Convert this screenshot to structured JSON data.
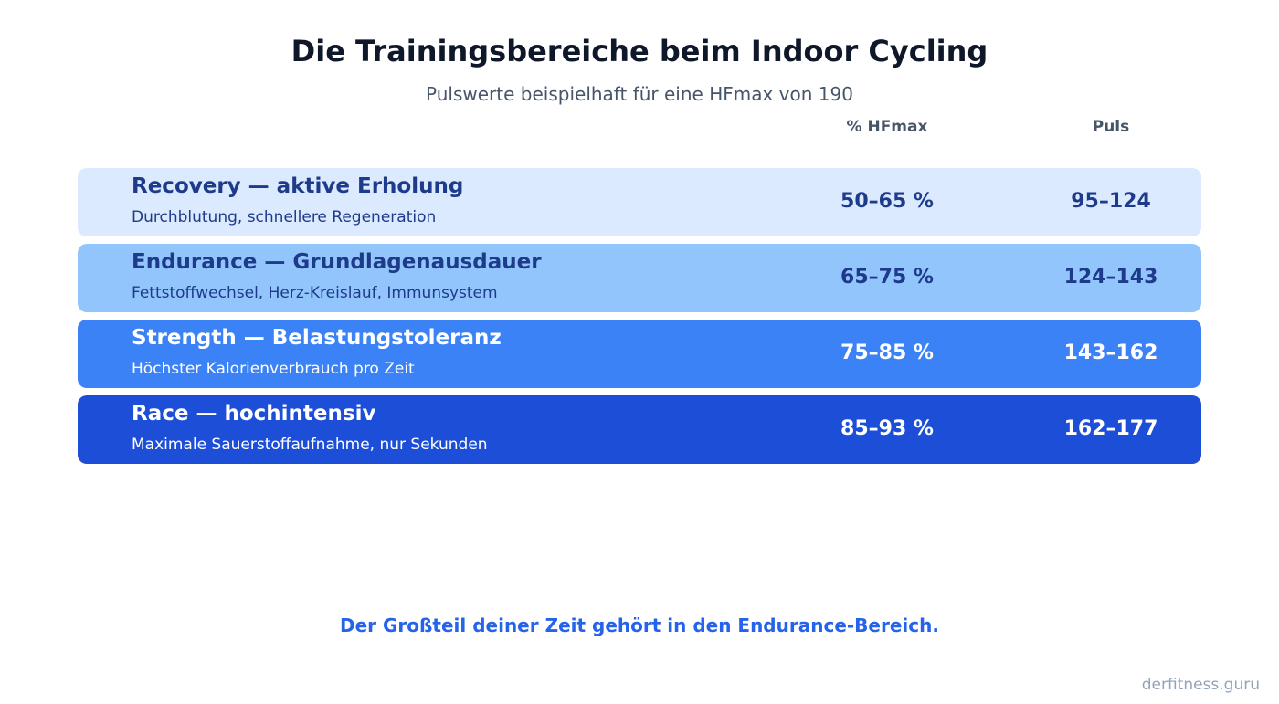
{
  "chart_data": {
    "type": "table",
    "title": "Die Trainingsbereiche beim Indoor Cycling",
    "subtitle": "Pulswerte beispielhaft für eine HFmax von 190",
    "columns": [
      "% HFmax",
      "Puls"
    ],
    "rows": [
      {
        "name": "Recovery — aktive Erholung",
        "description": "Durchblutung, schnellere Regeneration",
        "pct_hfmax": "50–65 %",
        "puls": "95–124",
        "bg_color": "#dbeafe",
        "text_color": "#1e3a8a"
      },
      {
        "name": "Endurance — Grundlagenausdauer",
        "description": "Fettstoffwechsel, Herz-Kreislauf, Immunsystem",
        "pct_hfmax": "65–75 %",
        "puls": "124–143",
        "bg_color": "#93c5fd",
        "text_color": "#1e3a8a"
      },
      {
        "name": "Strength — Belastungstoleranz",
        "description": "Höchster Kalorienverbrauch pro Zeit",
        "pct_hfmax": "75–85 %",
        "puls": "143–162",
        "bg_color": "#3b82f6",
        "text_color": "#ffffff"
      },
      {
        "name": "Race — hochintensiv",
        "description": "Maximale Sauerstoffaufnahme, nur Sekunden",
        "pct_hfmax": "85–93 %",
        "puls": "162–177",
        "bg_color": "#1d4ed8",
        "text_color": "#ffffff"
      }
    ],
    "annotation": "Der Großteil deiner Zeit gehört in den Endurance-Bereich."
  },
  "footer": {
    "brand": "derfitness.guru"
  }
}
